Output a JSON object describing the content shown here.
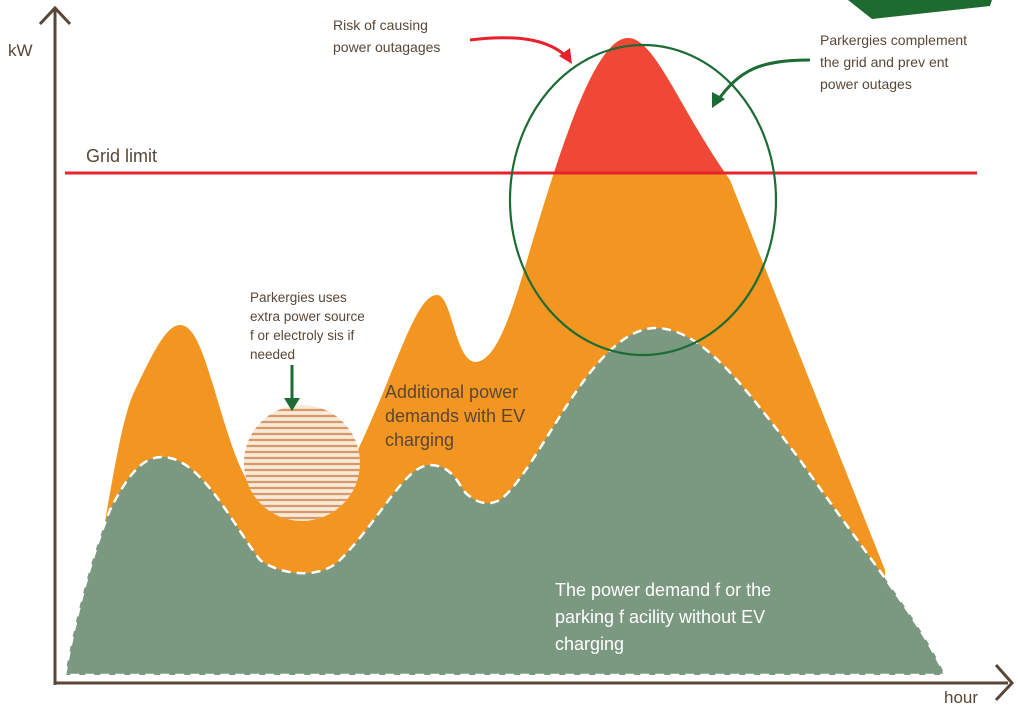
{
  "axes": {
    "y_label": "kW",
    "x_label": "hour"
  },
  "grid_limit_label": "Grid limit",
  "risk_note": {
    "lines": [
      "Risk of causing",
      "power outagages"
    ]
  },
  "complement_note": {
    "lines": [
      "Parkergies complement",
      "the grid and prev ent",
      "power outages"
    ]
  },
  "electrolysis_note": {
    "lines": [
      "Parkergies uses",
      "extra power source",
      "f or electroly sis if",
      "needed"
    ]
  },
  "ev_demand_label": {
    "lines": [
      "Additional power",
      "demands with EV",
      "charging"
    ]
  },
  "base_demand_label": {
    "lines": [
      "The power demand f or the",
      "parking f acility  without EV",
      "charging"
    ]
  }
}
